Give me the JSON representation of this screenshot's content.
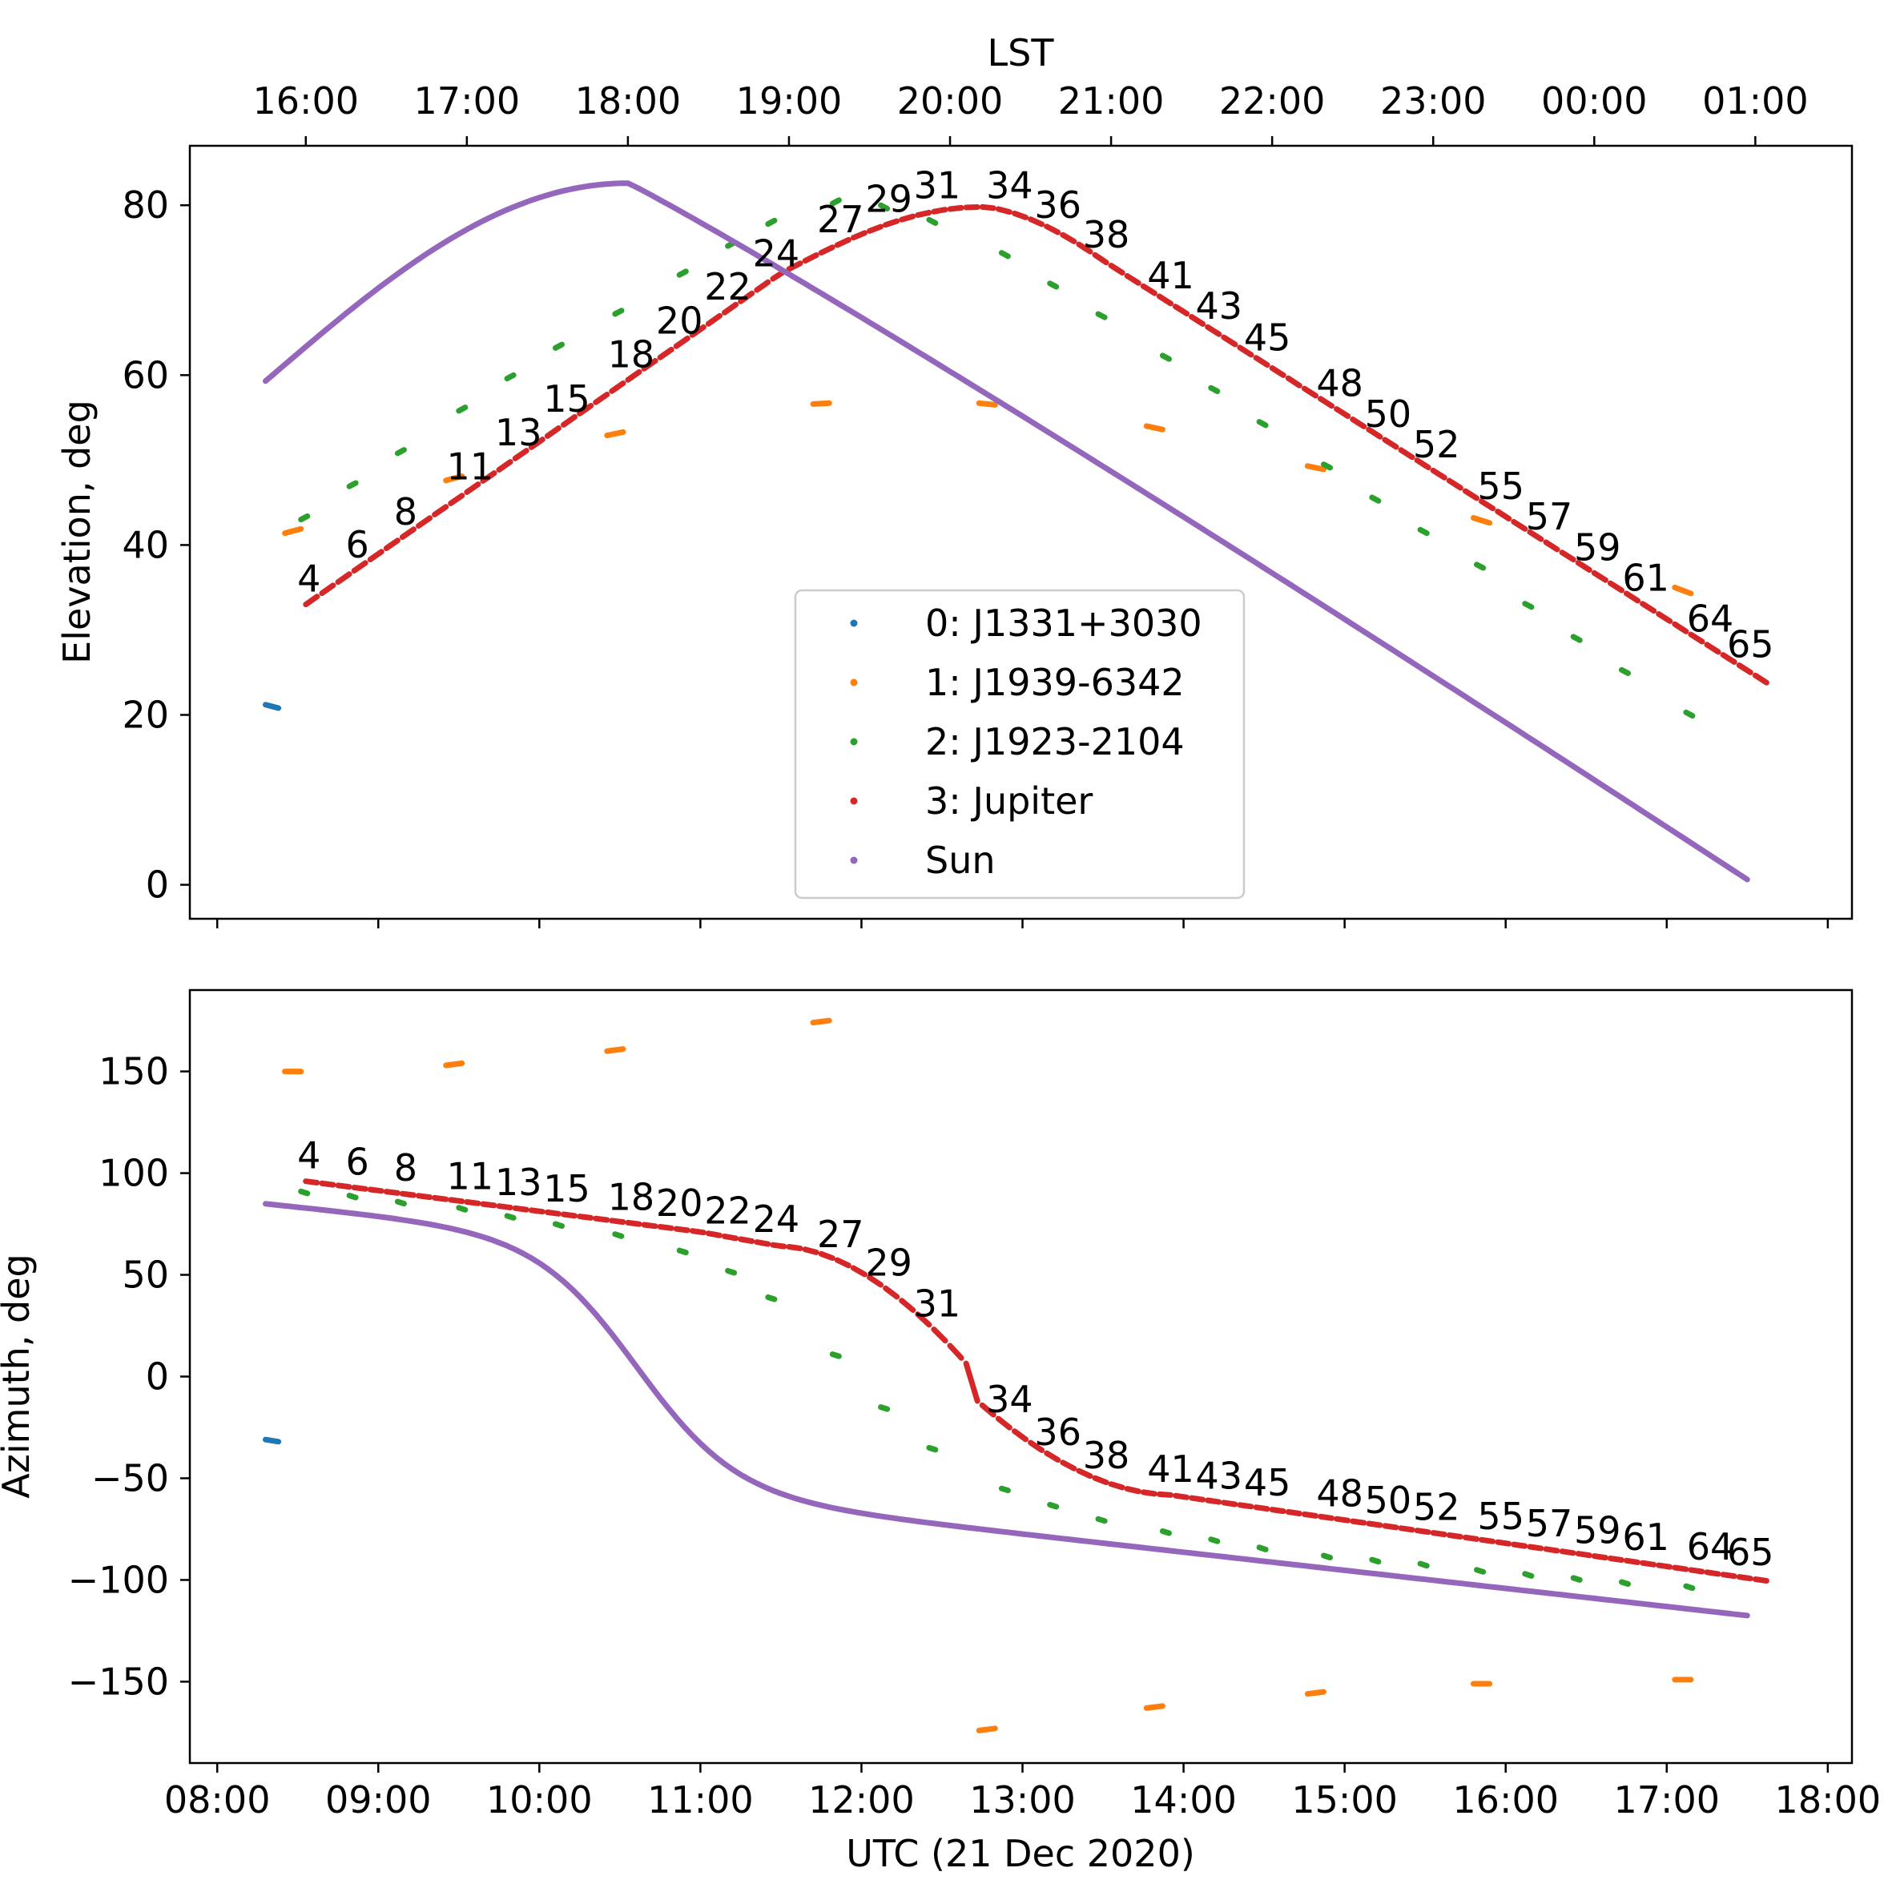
{
  "chart_data": {
    "type": "scatter",
    "colors": {
      "J1331+3030": "#1f77b4",
      "J1939-6342": "#ff7f0e",
      "J1923-2104": "#2ca02c",
      "Jupiter": "#d62728",
      "Sun": "#9467bd"
    },
    "legend": {
      "placement": "lower-center (top panel)",
      "entries": [
        "0: J1331+3030",
        "1: J1939-6342",
        "2: J1923-2104",
        "3: Jupiter",
        "Sun"
      ]
    },
    "top_axis": {
      "label": "LST",
      "ticks": [
        {
          "label": "16:00",
          "x": 8.55
        },
        {
          "label": "17:00",
          "x": 9.55
        },
        {
          "label": "18:00",
          "x": 10.55
        },
        {
          "label": "19:00",
          "x": 11.55
        },
        {
          "label": "20:00",
          "x": 12.55
        },
        {
          "label": "21:00",
          "x": 13.55
        },
        {
          "label": "22:00",
          "x": 14.55
        },
        {
          "label": "23:00",
          "x": 15.55
        },
        {
          "label": "00:00",
          "x": 16.55
        },
        {
          "label": "01:00",
          "x": 17.55
        }
      ]
    },
    "x_axis": {
      "label": "UTC (21 Dec 2020)",
      "xlim": [
        7.83,
        18.15
      ],
      "ticks": [
        {
          "label": "08:00",
          "x": 8
        },
        {
          "label": "09:00",
          "x": 9
        },
        {
          "label": "10:00",
          "x": 10
        },
        {
          "label": "11:00",
          "x": 11
        },
        {
          "label": "12:00",
          "x": 12
        },
        {
          "label": "13:00",
          "x": 13
        },
        {
          "label": "14:00",
          "x": 14
        },
        {
          "label": "15:00",
          "x": 15
        },
        {
          "label": "16:00",
          "x": 16
        },
        {
          "label": "17:00",
          "x": 17
        },
        {
          "label": "18:00",
          "x": 18
        }
      ]
    },
    "panels": [
      {
        "id": "elevation",
        "ylabel": "Elevation, deg",
        "ylim": [
          -4,
          87
        ],
        "yticks": [
          0,
          20,
          40,
          60,
          80
        ],
        "series": [
          {
            "name": "0: J1331+3030",
            "key": "J1331+3030",
            "segments": [
              {
                "t0": 8.3,
                "t1": 8.38,
                "y0": 21.2,
                "y1": 20.8
              }
            ]
          },
          {
            "name": "1: J1939-6342",
            "key": "J1939-6342",
            "segments": [
              {
                "t0": 8.42,
                "t1": 8.52,
                "y0": 41.4,
                "y1": 41.9
              },
              {
                "t0": 9.42,
                "t1": 9.52,
                "y0": 47.6,
                "y1": 48.1
              },
              {
                "t0": 10.42,
                "t1": 10.52,
                "y0": 52.9,
                "y1": 53.3
              },
              {
                "t0": 11.7,
                "t1": 11.8,
                "y0": 56.6,
                "y1": 56.7
              },
              {
                "t0": 12.73,
                "t1": 12.83,
                "y0": 56.7,
                "y1": 56.5
              },
              {
                "t0": 13.77,
                "t1": 13.87,
                "y0": 54.0,
                "y1": 53.6
              },
              {
                "t0": 14.77,
                "t1": 14.87,
                "y0": 49.3,
                "y1": 48.9
              },
              {
                "t0": 15.8,
                "t1": 15.9,
                "y0": 43.2,
                "y1": 42.6
              },
              {
                "t0": 17.05,
                "t1": 17.15,
                "y0": 35.0,
                "y1": 34.3
              }
            ]
          },
          {
            "name": "2: J1923-2104",
            "key": "J1923-2104",
            "segments": [
              {
                "t0": 8.52,
                "t1": 8.56,
                "y0": 42.8,
                "y1": 43.2
              },
              {
                "t0": 8.82,
                "t1": 8.86,
                "y0": 46.7,
                "y1": 47.1
              },
              {
                "t0": 9.12,
                "t1": 9.16,
                "y0": 50.6,
                "y1": 51.0
              },
              {
                "t0": 9.5,
                "t1": 9.54,
                "y0": 55.6,
                "y1": 56.0
              },
              {
                "t0": 9.8,
                "t1": 9.84,
                "y0": 59.4,
                "y1": 59.8
              },
              {
                "t0": 10.1,
                "t1": 10.14,
                "y0": 63.0,
                "y1": 63.4
              },
              {
                "t0": 10.47,
                "t1": 10.51,
                "y0": 67.0,
                "y1": 67.4
              },
              {
                "t0": 10.97,
                "t1": 11.01,
                "y0": 71.6,
                "y1": 72.0
              },
              {
                "t0": 11.1,
                "t1": 11.14,
                "y0": 72.5,
                "y1": 72.9
              },
              {
                "t0": 11.1,
                "t1": 11.14,
                "y0": 72.5,
                "y1": 72.9
              },
              {
                "t0": 11.1,
                "t1": 11.14,
                "y0": 72.5,
                "y1": 72.9
              },
              {
                "t0": 11.1,
                "t1": 11.14,
                "y0": 72.5,
                "y1": 72.9
              },
              {
                "t0": 11.1,
                "t1": 11.14,
                "y0": 72.5,
                "y1": 72.9
              },
              {
                "t0": 11.1,
                "t1": 11.14,
                "y0": 72.5,
                "y1": 72.9
              },
              {
                "t0": 11.1,
                "t1": 11.14,
                "y0": 72.5,
                "y1": 72.9
              },
              {
                "t0": 11.1,
                "t1": 11.14,
                "y0": 72.5,
                "y1": 72.9
              },
              {
                "t0": 11.1,
                "t1": 11.14,
                "y0": 72.5,
                "y1": 72.9
              },
              {
                "t0": 11.1,
                "t1": 11.14,
                "y0": 72.5,
                "y1": 72.9
              },
              {
                "t0": 11.1,
                "t1": 11.14,
                "y0": 72.5,
                "y1": 72.9
              },
              {
                "t0": 11.1,
                "t1": 11.14,
                "y0": 72.5,
                "y1": 72.9
              },
              {
                "t0": 11.1,
                "t1": 11.14,
                "y0": 72.5,
                "y1": 72.9
              },
              {
                "t0": 11.1,
                "t1": 11.14,
                "y0": 72.5,
                "y1": 72.9
              }
            ]
          },
          {
            "name": "3: Jupiter",
            "key": "Jupiter",
            "segments": []
          },
          {
            "name": "Sun",
            "key": "Sun",
            "segments": []
          }
        ]
      }
    ]
  }
}
